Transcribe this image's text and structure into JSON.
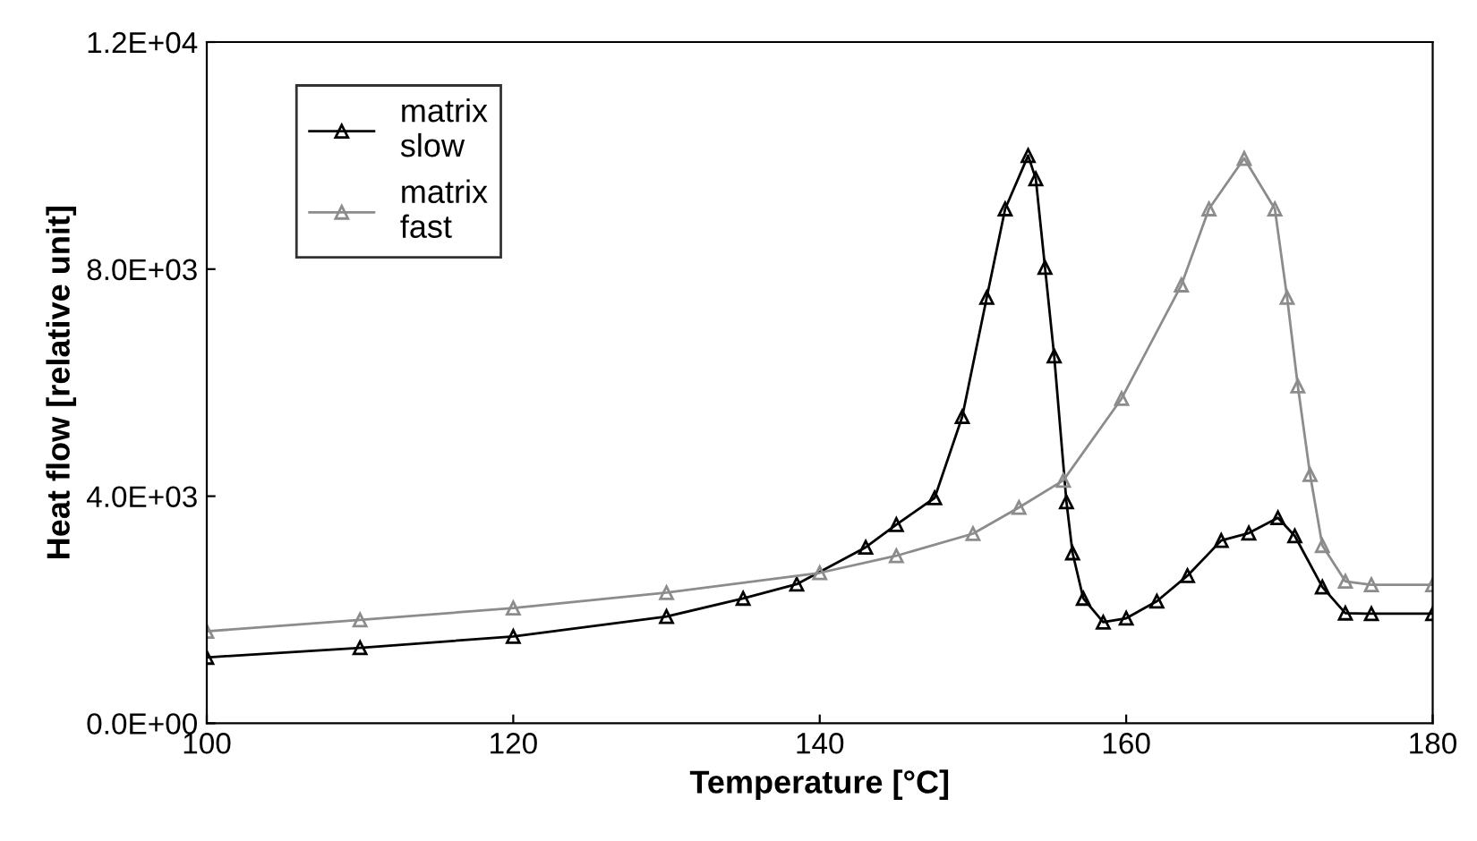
{
  "chart_data": {
    "type": "line",
    "xlabel": "Temperature [°C]",
    "ylabel": "Heat flow [relative unit]",
    "xlim": [
      100,
      180
    ],
    "xticks": [
      100,
      120,
      140,
      160,
      180
    ],
    "ylim": [
      0,
      12000
    ],
    "yticks": [
      {
        "value": 0,
        "label": "0.0E+00"
      },
      {
        "value": 4000,
        "label": "4.0E+03"
      },
      {
        "value": 8000,
        "label": "8.0E+03"
      },
      {
        "value": 12000,
        "label": "1.2E+04"
      }
    ],
    "grid": false,
    "legend": "top left",
    "marker": "triangle",
    "line_style": "solid",
    "series": [
      {
        "name": "matrix\nslow",
        "color": "#000000",
        "x": [
          100,
          110,
          120,
          130,
          135,
          138.5,
          143,
          145,
          147.5,
          149.3,
          150.9,
          152.1,
          153.6,
          154.1,
          154.7,
          155.3,
          156.1,
          156.5,
          157.2,
          158.5,
          160,
          162,
          164,
          166.2,
          168,
          169.9,
          171,
          172.8,
          174.3,
          176,
          180
        ],
        "values": [
          1160,
          1330,
          1530,
          1880,
          2200,
          2450,
          3100,
          3500,
          3970,
          5400,
          7500,
          9060,
          10000,
          9590,
          8030,
          6470,
          3900,
          3000,
          2200,
          1780,
          1850,
          2150,
          2600,
          3220,
          3350,
          3620,
          3300,
          2400,
          1940,
          1930,
          1930
        ]
      },
      {
        "name": "matrix\nfast",
        "color": "#8c8c8c",
        "x": [
          100,
          110,
          120,
          130,
          140,
          145,
          150,
          153,
          155.9,
          159.7,
          163.6,
          165.4,
          167.7,
          169.7,
          170.5,
          171.2,
          172,
          172.8,
          174.3,
          176,
          180
        ],
        "values": [
          1620,
          1820,
          2030,
          2300,
          2650,
          2950,
          3340,
          3800,
          4280,
          5720,
          7720,
          9060,
          9950,
          9060,
          7500,
          5940,
          4380,
          3130,
          2500,
          2440,
          2440
        ]
      }
    ]
  }
}
